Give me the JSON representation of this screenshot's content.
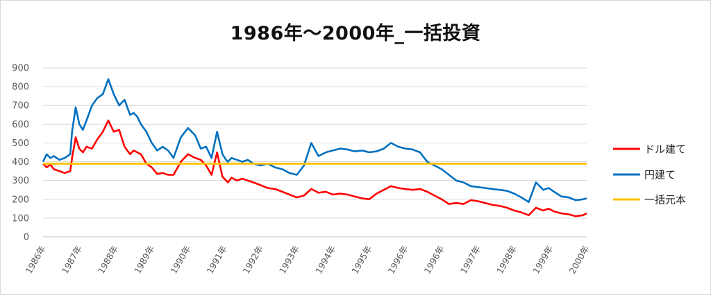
{
  "chart_data": {
    "type": "line",
    "title": "1986年～2000年_一括投資",
    "xlabel": "",
    "ylabel": "",
    "ylim": [
      0,
      900
    ],
    "yticks": [
      0,
      100,
      200,
      300,
      400,
      500,
      600,
      700,
      800,
      900
    ],
    "xtick_labels": [
      "1986年",
      "1987年",
      "1988年",
      "1989年",
      "1990年",
      "1991年",
      "1992年",
      "1993年",
      "1994年",
      "1995年",
      "1996年",
      "1996年",
      "1997年",
      "1998年",
      "1999年",
      "2000年"
    ],
    "xlim": [
      0,
      15
    ],
    "grid": true,
    "legend_position": "right",
    "series": [
      {
        "name": "ドル建て",
        "color": "#ff0000",
        "x": [
          0,
          0.1,
          0.2,
          0.3,
          0.45,
          0.6,
          0.75,
          0.8,
          0.9,
          1.0,
          1.1,
          1.2,
          1.35,
          1.5,
          1.65,
          1.8,
          1.95,
          2.1,
          2.25,
          2.4,
          2.5,
          2.6,
          2.7,
          2.85,
          3.0,
          3.15,
          3.3,
          3.45,
          3.6,
          3.8,
          4.0,
          4.2,
          4.35,
          4.5,
          4.65,
          4.8,
          4.95,
          5.05,
          5.1,
          5.2,
          5.35,
          5.5,
          5.65,
          5.8,
          6.0,
          6.2,
          6.4,
          6.6,
          6.8,
          7.0,
          7.2,
          7.4,
          7.6,
          7.8,
          8.0,
          8.2,
          8.4,
          8.6,
          8.8,
          9.0,
          9.2,
          9.4,
          9.6,
          9.8,
          10.0,
          10.2,
          10.4,
          10.6,
          10.8,
          11.0,
          11.2,
          11.4,
          11.6,
          11.8,
          12.0,
          12.2,
          12.4,
          12.6,
          12.8,
          13.0,
          13.2,
          13.4,
          13.6,
          13.8,
          13.95,
          14.1,
          14.3,
          14.5,
          14.7,
          14.9,
          15.0
        ],
        "values": [
          390,
          370,
          385,
          360,
          350,
          340,
          350,
          420,
          530,
          470,
          450,
          480,
          470,
          520,
          560,
          620,
          560,
          570,
          480,
          440,
          460,
          450,
          440,
          390,
          370,
          335,
          340,
          330,
          330,
          400,
          440,
          420,
          410,
          380,
          330,
          450,
          320,
          300,
          290,
          315,
          300,
          310,
          300,
          290,
          275,
          260,
          255,
          240,
          225,
          210,
          220,
          255,
          235,
          240,
          225,
          230,
          225,
          215,
          205,
          200,
          230,
          250,
          270,
          260,
          255,
          250,
          255,
          240,
          220,
          200,
          175,
          180,
          175,
          195,
          190,
          180,
          170,
          165,
          155,
          140,
          130,
          115,
          155,
          140,
          150,
          135,
          125,
          120,
          110,
          115,
          125
        ]
      },
      {
        "name": "円建て",
        "color": "#0070c0",
        "x": [
          0,
          0.1,
          0.2,
          0.3,
          0.45,
          0.6,
          0.75,
          0.8,
          0.9,
          1.0,
          1.1,
          1.2,
          1.35,
          1.5,
          1.65,
          1.8,
          1.95,
          2.1,
          2.25,
          2.4,
          2.5,
          2.6,
          2.7,
          2.85,
          3.0,
          3.15,
          3.3,
          3.45,
          3.6,
          3.8,
          4.0,
          4.2,
          4.35,
          4.5,
          4.65,
          4.8,
          4.95,
          5.05,
          5.1,
          5.2,
          5.35,
          5.5,
          5.65,
          5.8,
          6.0,
          6.2,
          6.4,
          6.6,
          6.8,
          7.0,
          7.2,
          7.4,
          7.6,
          7.8,
          8.0,
          8.2,
          8.4,
          8.6,
          8.8,
          9.0,
          9.2,
          9.4,
          9.6,
          9.8,
          10.0,
          10.2,
          10.4,
          10.6,
          10.8,
          11.0,
          11.2,
          11.4,
          11.6,
          11.8,
          12.0,
          12.2,
          12.4,
          12.6,
          12.8,
          13.0,
          13.2,
          13.4,
          13.6,
          13.8,
          13.95,
          14.1,
          14.3,
          14.5,
          14.7,
          14.9,
          15.0
        ],
        "values": [
          400,
          440,
          420,
          430,
          410,
          420,
          440,
          560,
          690,
          600,
          570,
          620,
          700,
          740,
          760,
          840,
          760,
          700,
          730,
          650,
          660,
          640,
          600,
          560,
          500,
          460,
          480,
          460,
          420,
          530,
          580,
          540,
          470,
          480,
          420,
          560,
          440,
          410,
          400,
          420,
          410,
          400,
          410,
          390,
          380,
          390,
          370,
          360,
          340,
          330,
          380,
          500,
          430,
          450,
          460,
          470,
          465,
          455,
          460,
          450,
          455,
          470,
          500,
          480,
          470,
          465,
          450,
          400,
          380,
          360,
          330,
          300,
          290,
          270,
          265,
          260,
          255,
          250,
          245,
          230,
          210,
          185,
          290,
          250,
          260,
          240,
          215,
          210,
          195,
          200,
          205
        ]
      },
      {
        "name": "一括元本",
        "color": "#ffc000",
        "x": [
          0,
          15
        ],
        "values": [
          390,
          390
        ]
      }
    ]
  }
}
